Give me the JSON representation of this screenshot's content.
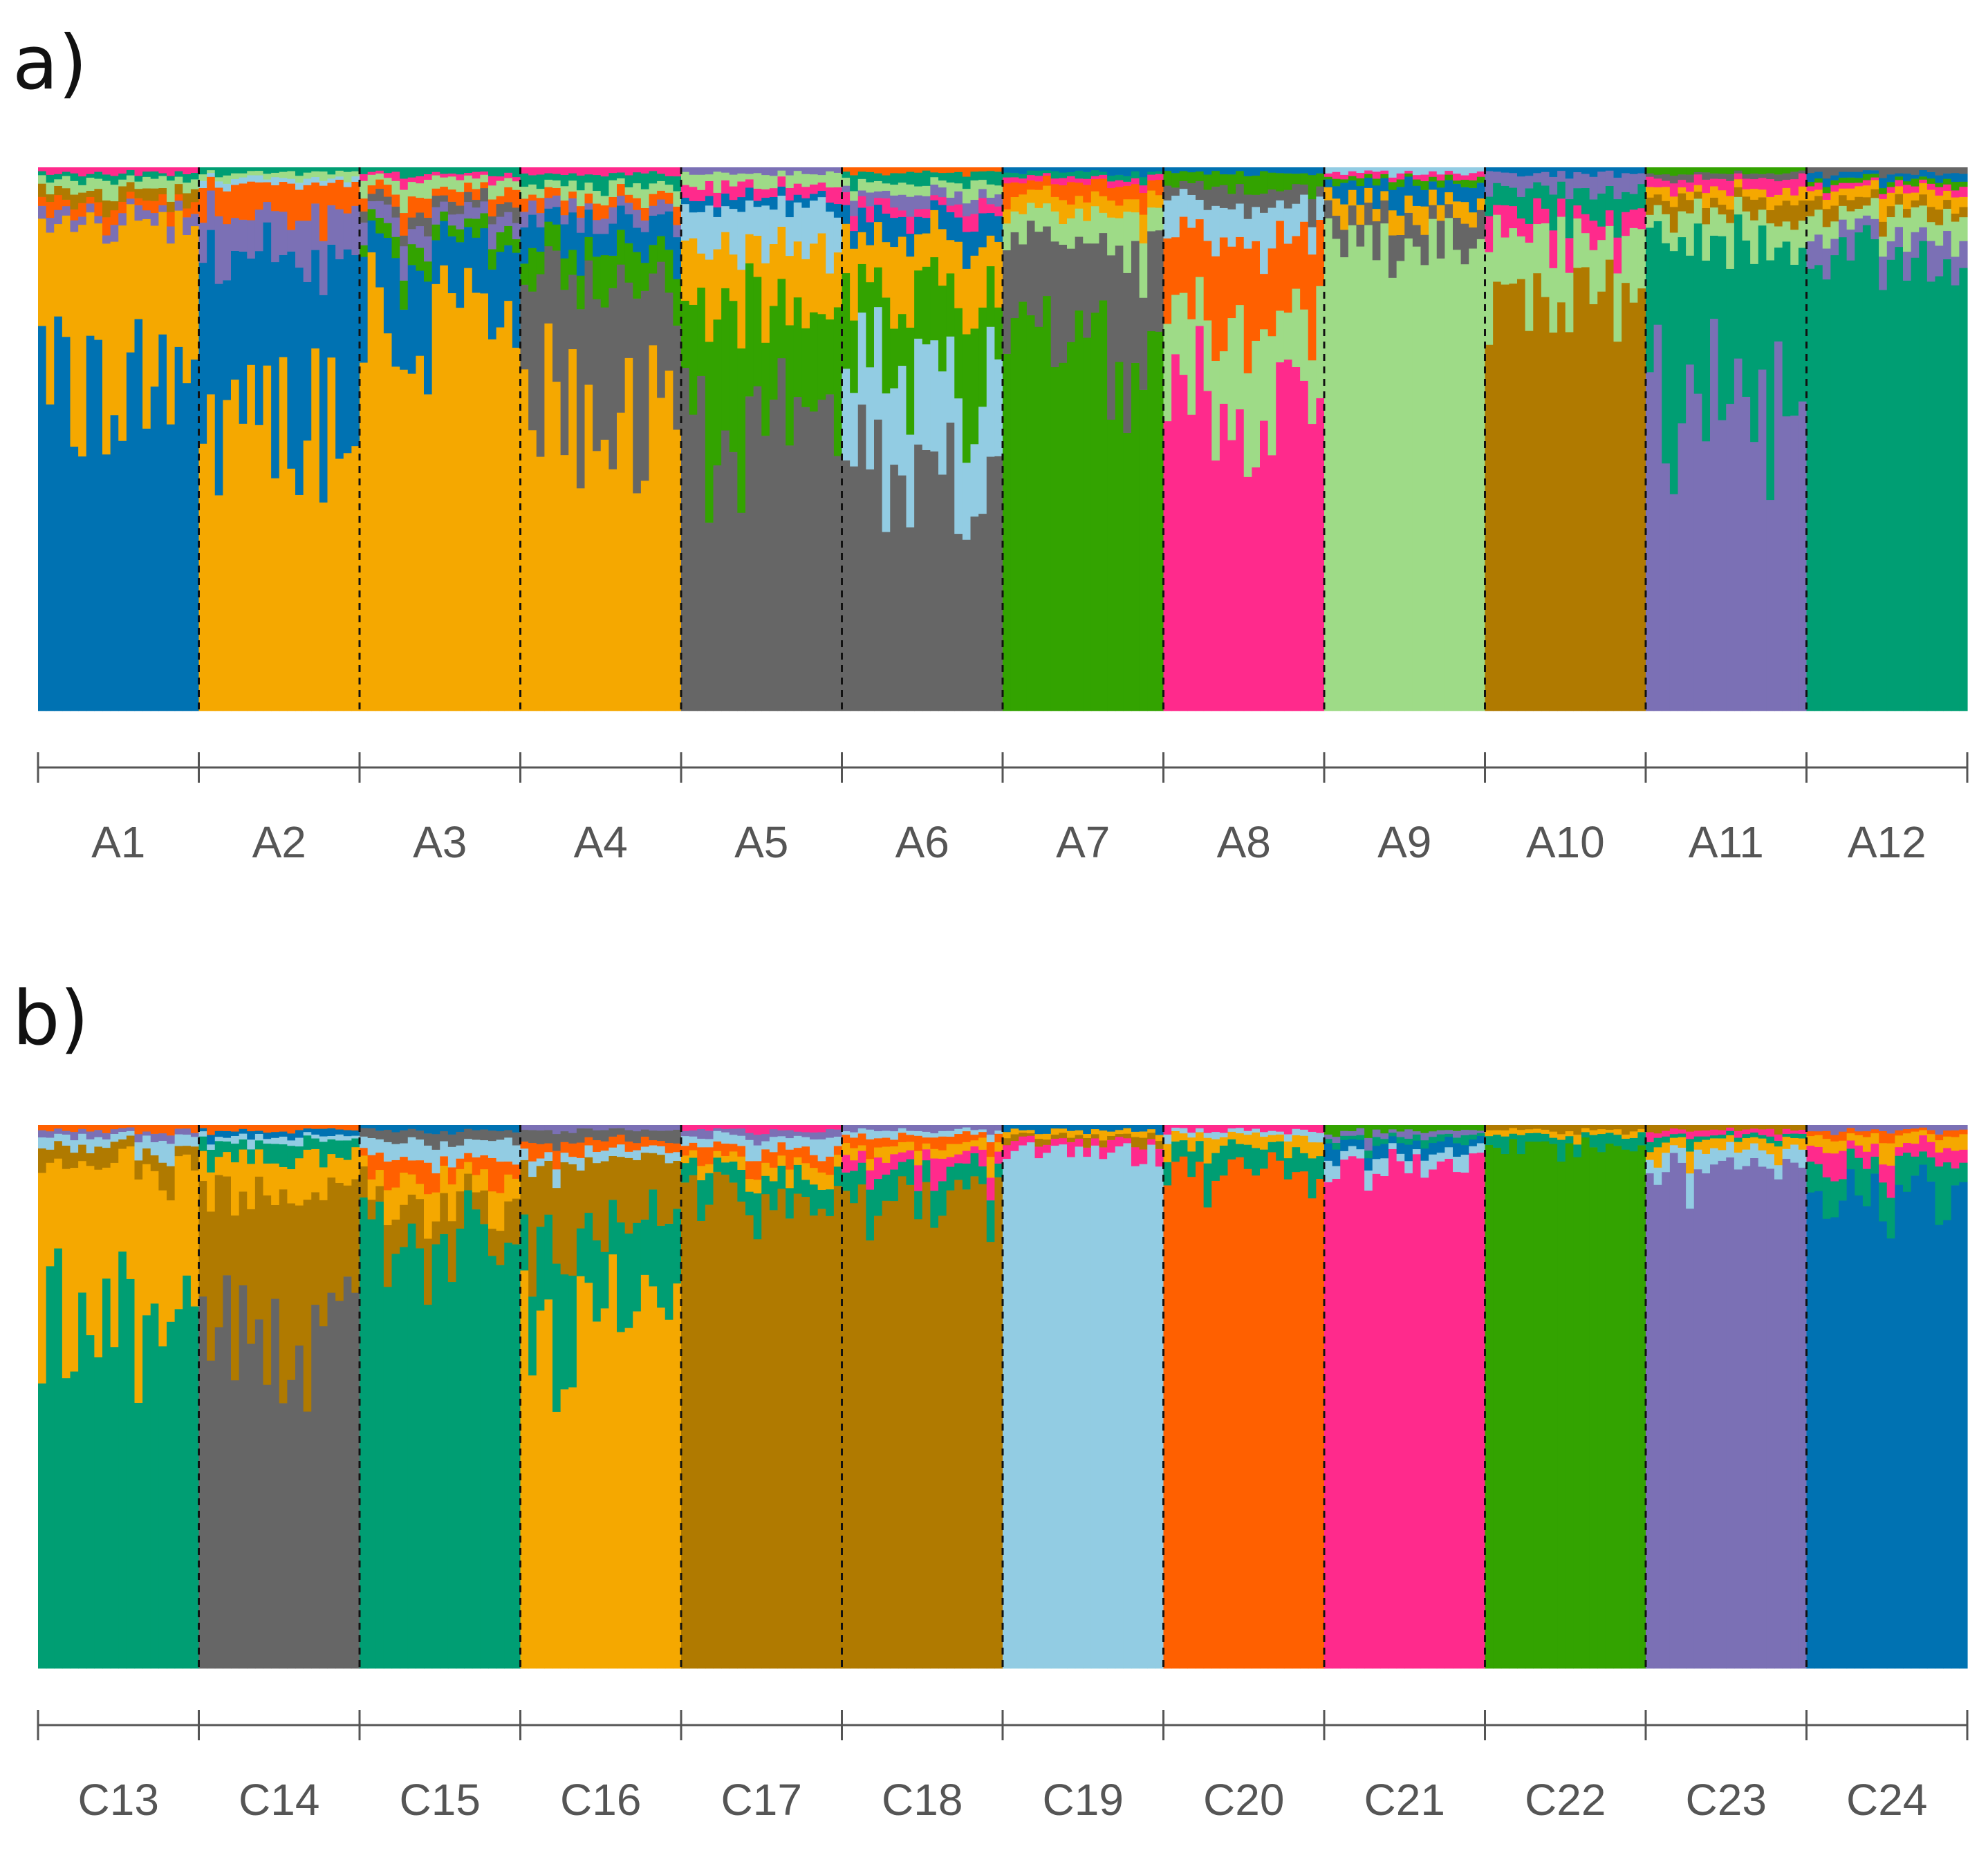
{
  "panels": [
    {
      "label": "a)",
      "populations": [
        "A1",
        "A2",
        "A3",
        "A4",
        "A5",
        "A6",
        "A7",
        "A8",
        "A9",
        "A10",
        "A11",
        "A12"
      ]
    },
    {
      "label": "b)",
      "populations": [
        "C13",
        "C14",
        "C15",
        "C16",
        "C17",
        "C18",
        "C19",
        "C20",
        "C21",
        "C22",
        "C23",
        "C24"
      ]
    }
  ],
  "chart_data": [
    {
      "type": "bar",
      "subtype": "stacked-admixture",
      "title": "a)",
      "ylim": [
        0,
        1
      ],
      "xlabel": "",
      "ylabel": "",
      "individuals_per_population": 20,
      "categories": [
        "A1",
        "A2",
        "A3",
        "A4",
        "A5",
        "A6",
        "A7",
        "A8",
        "A9",
        "A10",
        "A11",
        "A12"
      ],
      "cluster_colors": {
        "dark_blue": "#0072B2",
        "orange": "#F5A800",
        "dark_green": "#009E73",
        "grey": "#666666",
        "light_blue": "#92CCE3",
        "light_green": "#9EDB87",
        "brown": "#B07A00",
        "pink": "#FF2A8C",
        "purple": "#7B70B5",
        "green": "#33A300",
        "red_orange": "#FF6000"
      },
      "approx_mean_ancestry": [
        {
          "population": "A1",
          "dark_blue": 0.62,
          "orange": 0.28,
          "purple": 0.02,
          "red_orange": 0.02,
          "dark_green": 0.01,
          "brown": 0.02,
          "light_green": 0.02,
          "pink": 0.01
        },
        {
          "population": "A2",
          "dark_blue": 0.28,
          "orange": 0.56,
          "purple": 0.07,
          "red_orange": 0.06,
          "light_blue": 0.01,
          "light_green": 0.01,
          "dark_green": 0.01
        },
        {
          "population": "A3",
          "orange": 0.74,
          "dark_blue": 0.12,
          "grey": 0.02,
          "green": 0.03,
          "purple": 0.03,
          "pink": 0.01,
          "red_orange": 0.02,
          "light_green": 0.02,
          "dark_green": 0.01
        },
        {
          "population": "A4",
          "orange": 0.58,
          "grey": 0.22,
          "dark_blue": 0.05,
          "green": 0.06,
          "purple": 0.02,
          "red_orange": 0.02,
          "light_green": 0.02,
          "pink": 0.01,
          "dark_green": 0.02
        },
        {
          "population": "A5",
          "grey": 0.52,
          "green": 0.22,
          "orange": 0.11,
          "light_blue": 0.08,
          "dark_blue": 0.02,
          "pink": 0.02,
          "purple": 0.01,
          "light_green": 0.02
        },
        {
          "population": "A6",
          "grey": 0.44,
          "green": 0.14,
          "light_blue": 0.19,
          "orange": 0.1,
          "dark_blue": 0.04,
          "pink": 0.02,
          "purple": 0.02,
          "light_green": 0.02,
          "red_orange": 0.01,
          "dark_green": 0.02
        },
        {
          "population": "A7",
          "green": 0.67,
          "grey": 0.18,
          "light_green": 0.06,
          "orange": 0.03,
          "red_orange": 0.03,
          "pink": 0.01,
          "dark_green": 0.01,
          "dark_blue": 0.01
        },
        {
          "population": "A8",
          "pink": 0.56,
          "red_orange": 0.14,
          "light_green": 0.16,
          "light_blue": 0.07,
          "grey": 0.03,
          "green": 0.03,
          "dark_blue": 0.01
        },
        {
          "population": "A9",
          "light_green": 0.86,
          "grey": 0.05,
          "orange": 0.03,
          "dark_blue": 0.03,
          "green": 0.01,
          "pink": 0.01,
          "light_blue": 0.01
        },
        {
          "population": "A10",
          "brown": 0.76,
          "light_green": 0.12,
          "pink": 0.04,
          "purple": 0.03,
          "dark_green": 0.04,
          "dark_blue": 0.01
        },
        {
          "population": "A11",
          "purple": 0.56,
          "dark_green": 0.3,
          "light_green": 0.05,
          "brown": 0.03,
          "orange": 0.02,
          "pink": 0.02,
          "grey": 0.01,
          "green": 0.01
        },
        {
          "population": "A12",
          "dark_green": 0.84,
          "purple": 0.04,
          "light_green": 0.04,
          "brown": 0.02,
          "orange": 0.02,
          "pink": 0.01,
          "green": 0.01,
          "dark_blue": 0.01,
          "grey": 0.01
        }
      ]
    },
    {
      "type": "bar",
      "subtype": "stacked-admixture",
      "title": "b)",
      "ylim": [
        0,
        1
      ],
      "xlabel": "",
      "ylabel": "",
      "individuals_per_population": 20,
      "categories": [
        "C13",
        "C14",
        "C15",
        "C16",
        "C17",
        "C18",
        "C19",
        "C20",
        "C21",
        "C22",
        "C23",
        "C24"
      ],
      "cluster_colors": {
        "dark_blue": "#0072B2",
        "orange": "#F5A800",
        "dark_green": "#009E73",
        "grey": "#666666",
        "light_blue": "#92CCE3",
        "light_green": "#9EDB87",
        "brown": "#B07A00",
        "pink": "#FF2A8C",
        "purple": "#7B70B5",
        "green": "#33A300",
        "red_orange": "#FF6000"
      },
      "approx_mean_ancestry": [
        {
          "population": "C13",
          "dark_green": 0.68,
          "orange": 0.25,
          "brown": 0.03,
          "light_blue": 0.02,
          "purple": 0.01,
          "red_orange": 0.01
        },
        {
          "population": "C14",
          "grey": 0.63,
          "brown": 0.25,
          "orange": 0.06,
          "dark_green": 0.03,
          "light_blue": 0.01,
          "dark_blue": 0.01,
          "red_orange": 0.01
        },
        {
          "population": "C15",
          "dark_green": 0.81,
          "brown": 0.06,
          "orange": 0.04,
          "red_orange": 0.03,
          "light_blue": 0.03,
          "dark_blue": 0.01,
          "grey": 0.02
        },
        {
          "population": "C16",
          "orange": 0.64,
          "dark_green": 0.16,
          "brown": 0.13,
          "light_blue": 0.02,
          "red_orange": 0.02,
          "purple": 0.01,
          "grey": 0.02
        },
        {
          "population": "C17",
          "brown": 0.88,
          "dark_green": 0.04,
          "orange": 0.02,
          "red_orange": 0.02,
          "light_blue": 0.02,
          "purple": 0.01,
          "pink": 0.01
        },
        {
          "population": "C18",
          "brown": 0.86,
          "dark_green": 0.05,
          "pink": 0.03,
          "orange": 0.02,
          "red_orange": 0.02,
          "light_blue": 0.01,
          "purple": 0.01
        },
        {
          "population": "C19",
          "light_blue": 0.95,
          "pink": 0.02,
          "brown": 0.01,
          "orange": 0.01,
          "dark_blue": 0.01
        },
        {
          "population": "C20",
          "red_orange": 0.92,
          "dark_green": 0.04,
          "orange": 0.02,
          "light_blue": 0.01,
          "pink": 0.01
        },
        {
          "population": "C21",
          "pink": 0.93,
          "light_blue": 0.02,
          "dark_blue": 0.02,
          "dark_green": 0.01,
          "purple": 0.01,
          "green": 0.01
        },
        {
          "population": "C22",
          "green": 0.96,
          "dark_green": 0.02,
          "orange": 0.01,
          "brown": 0.01
        },
        {
          "population": "C23",
          "purple": 0.92,
          "light_blue": 0.03,
          "orange": 0.02,
          "dark_green": 0.01,
          "pink": 0.01,
          "brown": 0.01
        },
        {
          "population": "C24",
          "dark_blue": 0.88,
          "dark_green": 0.05,
          "pink": 0.03,
          "orange": 0.02,
          "red_orange": 0.01,
          "purple": 0.01
        }
      ]
    }
  ]
}
